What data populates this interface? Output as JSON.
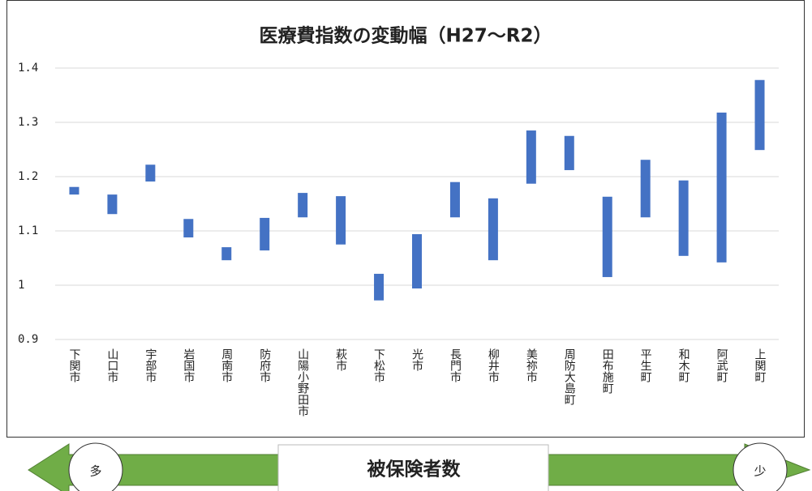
{
  "chart_data": {
    "type": "range-bar",
    "title": "医療費指数の変動幅（H27〜R2）",
    "categories": [
      "下関市",
      "山口市",
      "宇部市",
      "岩国市",
      "周南市",
      "防府市",
      "山陽小野田市",
      "萩市",
      "下松市",
      "光市",
      "長門市",
      "柳井市",
      "美祢市",
      "周防大島町",
      "田布施町",
      "平生町",
      "和木町",
      "阿武町",
      "上関町"
    ],
    "low": [
      1.167,
      1.131,
      1.191,
      1.088,
      1.046,
      1.064,
      1.125,
      1.075,
      0.972,
      0.994,
      1.125,
      1.046,
      1.187,
      1.212,
      1.015,
      1.125,
      1.054,
      1.042,
      1.249
    ],
    "high": [
      1.181,
      1.167,
      1.222,
      1.122,
      1.07,
      1.124,
      1.17,
      1.164,
      1.021,
      1.094,
      1.19,
      1.16,
      1.285,
      1.275,
      1.163,
      1.231,
      1.193,
      1.318,
      1.378
    ],
    "color": "#4472c4",
    "ylim": [
      0.9,
      1.4
    ],
    "yticks": [
      0.9,
      1,
      1.1,
      1.2,
      1.3,
      1.4
    ],
    "grid": true,
    "axis_label": "被保険者数",
    "left_label": "多",
    "right_label": "少"
  }
}
